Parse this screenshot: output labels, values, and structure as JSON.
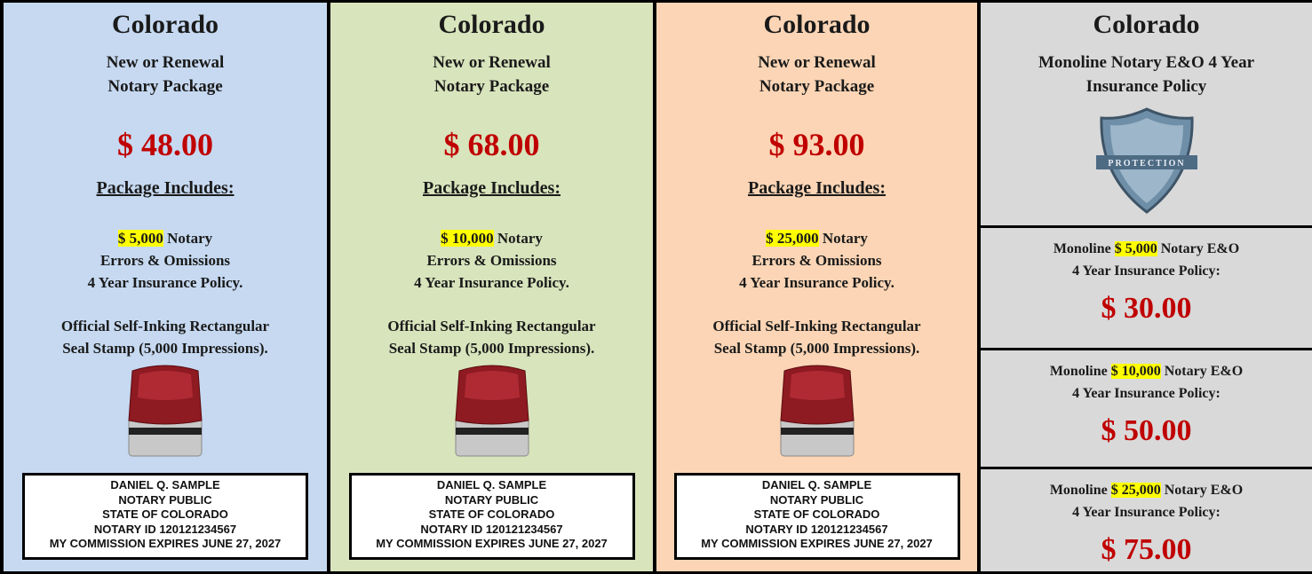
{
  "packages": [
    {
      "state": "Colorado",
      "title_lines": [
        "New or Renewal",
        "Notary Package"
      ],
      "price": "$ 48.00",
      "includes_label": "Package Includes:",
      "coverage": "$ 5,000",
      "coverage_rest": "Notary",
      "policy_lines": [
        "Errors & Omissions",
        "4 Year Insurance Policy."
      ],
      "stamp_lines": [
        "Official Self-Inking Rectangular",
        "Seal Stamp (5,000 Impressions)."
      ],
      "seal_lines": [
        "DANIEL Q. SAMPLE",
        "NOTARY PUBLIC",
        "STATE OF COLORADO",
        "NOTARY ID 120121234567",
        "MY COMMISSION EXPIRES JUNE 27, 2027"
      ]
    },
    {
      "state": "Colorado",
      "title_lines": [
        "New or Renewal",
        "Notary Package"
      ],
      "price": "$ 68.00",
      "includes_label": "Package Includes:",
      "coverage": "$ 10,000",
      "coverage_rest": "Notary",
      "policy_lines": [
        "Errors & Omissions",
        "4 Year Insurance Policy."
      ],
      "stamp_lines": [
        "Official Self-Inking Rectangular",
        "Seal Stamp (5,000 Impressions)."
      ],
      "seal_lines": [
        "DANIEL Q. SAMPLE",
        "NOTARY PUBLIC",
        "STATE OF COLORADO",
        "NOTARY ID 120121234567",
        "MY COMMISSION EXPIRES JUNE 27, 2027"
      ]
    },
    {
      "state": "Colorado",
      "title_lines": [
        "New or Renewal",
        "Notary Package"
      ],
      "price": "$ 93.00",
      "includes_label": "Package Includes:",
      "coverage": "$ 25,000",
      "coverage_rest": "Notary",
      "policy_lines": [
        "Errors & Omissions",
        "4 Year Insurance Policy."
      ],
      "stamp_lines": [
        "Official Self-Inking Rectangular",
        "Seal Stamp (5,000 Impressions)."
      ],
      "seal_lines": [
        "DANIEL Q. SAMPLE",
        "NOTARY PUBLIC",
        "STATE OF COLORADO",
        "NOTARY ID 120121234567",
        "MY COMMISSION EXPIRES JUNE 27, 2027"
      ]
    }
  ],
  "monoline": {
    "state": "Colorado",
    "title_lines": [
      "Monoline Notary E&O 4 Year",
      "Insurance Policy"
    ],
    "policies": [
      {
        "prefix": "Monoline",
        "coverage": "$ 5,000",
        "suffix": "Notary E&O",
        "line2": "4 Year Insurance Policy:",
        "price": "$ 30.00"
      },
      {
        "prefix": "Monoline",
        "coverage": "$ 10,000",
        "suffix": "Notary E&O",
        "line2": "4 Year Insurance Policy:",
        "price": "$ 50.00"
      },
      {
        "prefix": "Monoline",
        "coverage": "$ 25,000",
        "suffix": "Notary E&O",
        "line2": "4 Year Insurance Policy:",
        "price": "$ 75.00"
      }
    ]
  }
}
